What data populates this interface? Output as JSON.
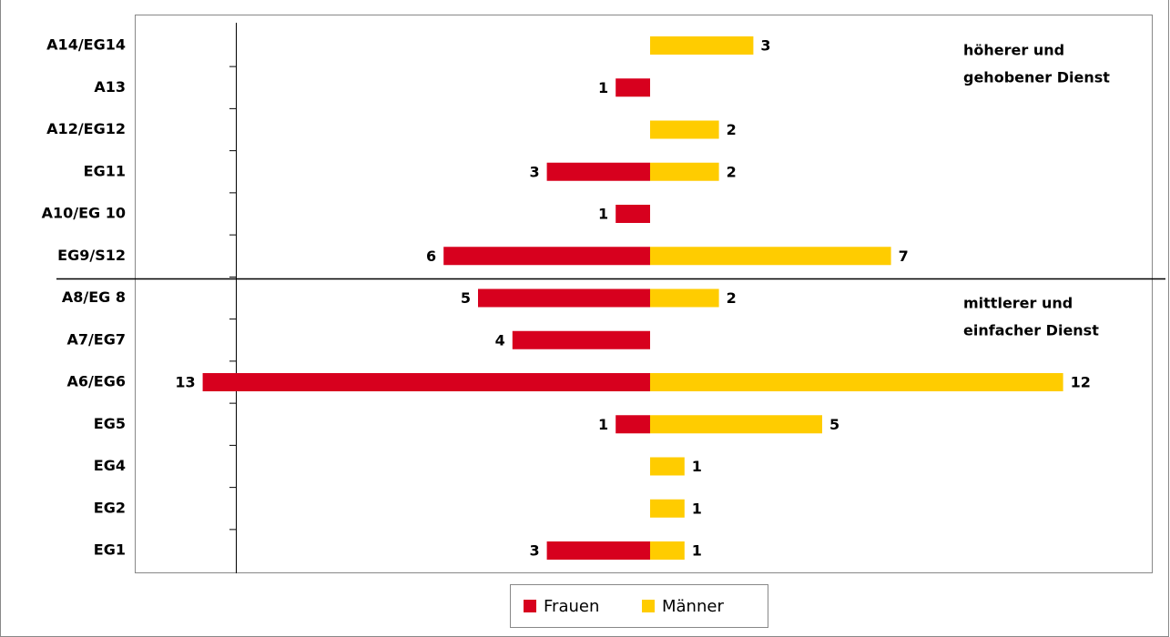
{
  "chart_data": {
    "type": "butterfly-bar",
    "categories": [
      "A14/EG14",
      "A13",
      "A12/EG12",
      "EG11",
      "A10/EG 10",
      "EG9/S12",
      "A8/EG 8",
      "A7/EG7",
      "A6/EG6",
      "EG5",
      "EG4",
      "EG2",
      "EG1"
    ],
    "series": [
      {
        "name": "Frauen",
        "color": "#d7001e",
        "values": [
          null,
          1,
          null,
          3,
          1,
          6,
          5,
          4,
          13,
          1,
          null,
          null,
          3
        ]
      },
      {
        "name": "Männer",
        "color": "#ffcc00",
        "values": [
          3,
          null,
          2,
          2,
          null,
          7,
          2,
          null,
          12,
          5,
          1,
          1,
          1
        ]
      }
    ],
    "annotations": [
      "höherer und",
      "gehobener Dienst",
      "mittlerer und",
      "einfacher Dienst"
    ]
  }
}
